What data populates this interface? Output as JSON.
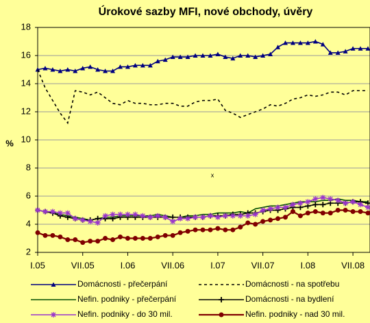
{
  "chart_data": {
    "type": "line",
    "title": "Úrokové sazby MFI, nové obchody, úvěry",
    "y_label": "%",
    "annotation": "x",
    "categories": [
      "I.05",
      null,
      null,
      null,
      null,
      null,
      "VII.05",
      null,
      null,
      null,
      null,
      null,
      "I.06",
      null,
      null,
      null,
      null,
      null,
      "VII.06",
      null,
      null,
      null,
      null,
      null,
      "I.07",
      null,
      null,
      null,
      null,
      null,
      "VII.07",
      null,
      null,
      null,
      null,
      null,
      "I.08",
      null,
      null,
      null,
      null,
      null,
      "VII.08",
      null,
      null
    ],
    "ylim": [
      2,
      18
    ],
    "yticks": [
      2,
      4,
      6,
      8,
      10,
      12,
      14,
      16,
      18
    ],
    "grid": true,
    "series": [
      {
        "name": "Domácnosti - přečerpání",
        "color": "#000080",
        "marker": "triangle",
        "dash": false,
        "values": [
          15.0,
          15.1,
          15.0,
          14.9,
          15.0,
          14.9,
          15.1,
          15.2,
          15.0,
          14.9,
          14.9,
          15.2,
          15.2,
          15.3,
          15.3,
          15.3,
          15.6,
          15.7,
          15.9,
          15.9,
          15.9,
          16.0,
          16.0,
          16.0,
          16.1,
          15.9,
          15.8,
          16.0,
          16.0,
          15.9,
          16.0,
          16.1,
          16.6,
          16.9,
          16.9,
          16.9,
          16.9,
          17.0,
          16.8,
          16.2,
          16.2,
          16.3,
          16.5,
          16.5,
          16.5
        ]
      },
      {
        "name": "Domácnosti - na spotřebu",
        "color": "#000000",
        "marker": "none",
        "dash": true,
        "values": [
          15.0,
          13.7,
          12.8,
          11.9,
          11.2,
          13.5,
          13.4,
          13.2,
          13.4,
          13.0,
          12.6,
          12.5,
          12.8,
          12.6,
          12.6,
          12.5,
          12.5,
          12.6,
          12.6,
          12.4,
          12.4,
          12.7,
          12.8,
          12.8,
          12.9,
          12.1,
          11.9,
          11.6,
          11.8,
          12.0,
          12.2,
          12.5,
          12.4,
          12.6,
          12.9,
          13.0,
          13.2,
          13.1,
          13.2,
          13.4,
          13.4,
          13.2,
          13.5,
          13.5,
          13.5
        ]
      },
      {
        "name": "Nefin. podniky - přečerpání",
        "color": "#004d00",
        "marker": "none",
        "dash": false,
        "values": [
          5.0,
          4.9,
          4.8,
          4.7,
          4.6,
          4.5,
          4.4,
          4.3,
          4.4,
          4.5,
          4.5,
          4.6,
          4.6,
          4.6,
          4.6,
          4.6,
          4.7,
          4.6,
          4.5,
          4.5,
          4.6,
          4.6,
          4.7,
          4.7,
          4.8,
          4.8,
          4.8,
          4.9,
          4.8,
          5.1,
          5.2,
          5.3,
          5.3,
          5.4,
          5.5,
          5.6,
          5.6,
          5.6,
          5.7,
          5.7,
          5.8,
          5.7,
          5.7,
          5.6,
          5.6
        ]
      },
      {
        "name": "Domácnosti - na bydlení",
        "color": "#000000",
        "marker": "plus",
        "dash": false,
        "values": [
          5.0,
          4.9,
          4.8,
          4.6,
          4.5,
          4.4,
          4.3,
          4.3,
          4.4,
          4.4,
          4.4,
          4.5,
          4.5,
          4.5,
          4.5,
          4.5,
          4.5,
          4.5,
          4.5,
          4.5,
          4.5,
          4.5,
          4.5,
          4.6,
          4.6,
          4.6,
          4.7,
          4.7,
          4.8,
          4.8,
          4.9,
          5.0,
          5.0,
          5.1,
          5.2,
          5.2,
          5.3,
          5.4,
          5.4,
          5.5,
          5.5,
          5.5,
          5.6,
          5.6,
          5.5
        ]
      },
      {
        "name": "Nefin. podniky - do 30 mil.",
        "color": "#9933cc",
        "marker": "star",
        "dash": false,
        "values": [
          5.0,
          4.9,
          4.9,
          4.8,
          4.8,
          4.4,
          4.3,
          4.2,
          4.1,
          4.6,
          4.7,
          4.7,
          4.7,
          4.7,
          4.6,
          4.5,
          4.6,
          4.5,
          4.2,
          4.4,
          4.4,
          4.5,
          4.5,
          4.6,
          4.5,
          4.6,
          4.6,
          4.6,
          4.6,
          4.7,
          5.0,
          5.1,
          5.2,
          5.2,
          5.4,
          5.5,
          5.6,
          5.8,
          5.9,
          5.8,
          5.7,
          5.5,
          5.6,
          5.4,
          5.2
        ]
      },
      {
        "name": "Nefin. podniky - nad 30 mil.",
        "color": "#800000",
        "marker": "circle",
        "dash": false,
        "values": [
          3.4,
          3.2,
          3.2,
          3.1,
          2.9,
          2.9,
          2.7,
          2.8,
          2.8,
          3.0,
          2.9,
          3.1,
          3.0,
          3.0,
          3.0,
          3.0,
          3.1,
          3.2,
          3.2,
          3.4,
          3.5,
          3.6,
          3.6,
          3.6,
          3.7,
          3.6,
          3.6,
          3.8,
          4.1,
          4.0,
          4.2,
          4.3,
          4.4,
          4.5,
          4.9,
          4.6,
          4.8,
          4.9,
          4.8,
          4.8,
          5.0,
          5.0,
          4.9,
          4.9,
          4.8
        ]
      }
    ]
  }
}
